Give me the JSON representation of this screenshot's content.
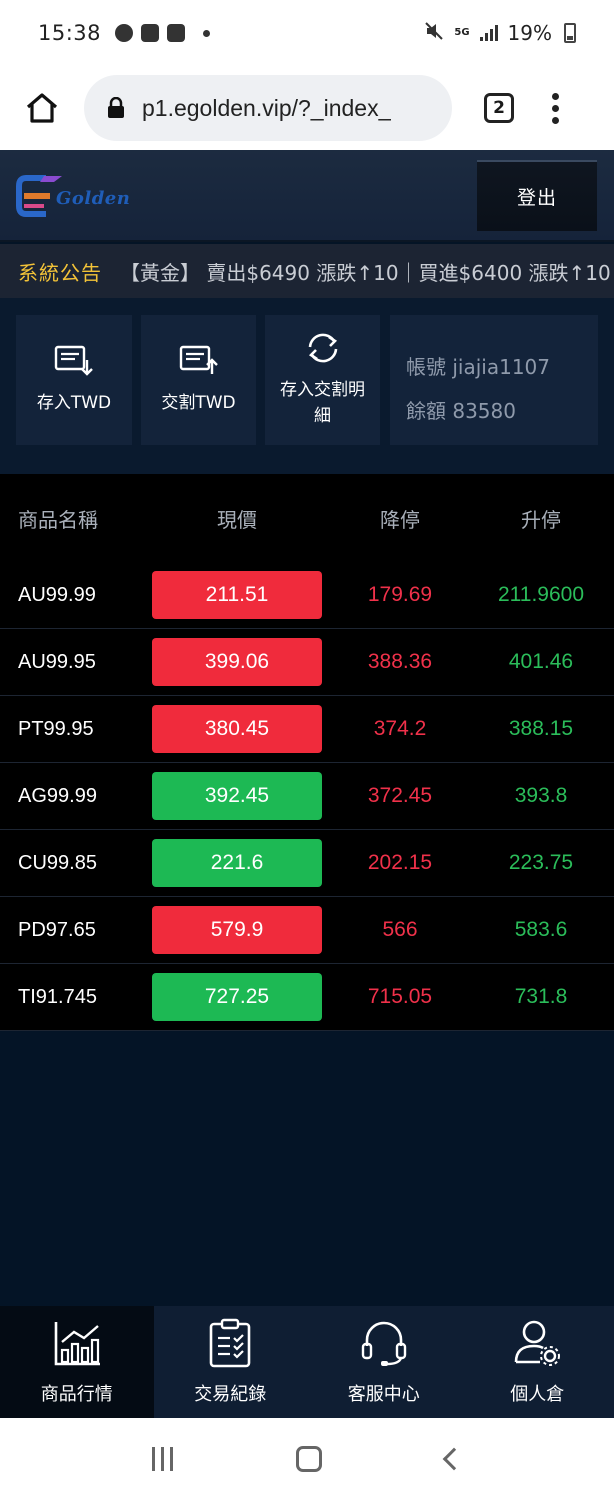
{
  "status_bar": {
    "time": "15:38",
    "left_icons": [
      "line-icon",
      "gallery-icon",
      "bus-icon",
      "dot-icon"
    ],
    "network": "5G",
    "battery": "19%",
    "right_icons": [
      "mute-icon",
      "signal-icon",
      "battery-icon"
    ]
  },
  "browser": {
    "url": "p1.egolden.vip/?_index_",
    "tab_count": "2"
  },
  "header": {
    "logo_text": "Golden",
    "logout_label": "登出"
  },
  "notice": {
    "label": "系統公告",
    "text": "【黃金】 賣出$6490 漲跌↑10｜買進$6400 漲跌↑10"
  },
  "actions": [
    {
      "label": "存入TWD",
      "icon": "deposit-icon"
    },
    {
      "label": "交割TWD",
      "icon": "settlement-icon"
    },
    {
      "label": "存入交割明細",
      "icon": "refresh-icon"
    }
  ],
  "account": {
    "account_line": "帳號 jiajia1107",
    "balance_line": "餘額 83580"
  },
  "table": {
    "headers": {
      "name": "商品名稱",
      "price": "現價",
      "limit_down": "降停",
      "limit_up": "升停"
    },
    "rows": [
      {
        "name": "AU99.99",
        "price": "211.51",
        "limit_down": "179.69",
        "limit_up": "211.9600",
        "trend": "down",
        "color": "#f02b3c"
      },
      {
        "name": "AU99.95",
        "price": "399.06",
        "limit_down": "388.36",
        "limit_up": "401.46",
        "trend": "down",
        "color": "#f02b3c"
      },
      {
        "name": "PT99.95",
        "price": "380.45",
        "limit_down": "374.2",
        "limit_up": "388.15",
        "trend": "down",
        "color": "#f02b3c"
      },
      {
        "name": "AG99.99",
        "price": "392.45",
        "limit_down": "372.45",
        "limit_up": "393.8",
        "trend": "up",
        "color": "#1db954"
      },
      {
        "name": "CU99.85",
        "price": "221.6",
        "limit_down": "202.15",
        "limit_up": "223.75",
        "trend": "up",
        "color": "#1db954"
      },
      {
        "name": "PD97.65",
        "price": "579.9",
        "limit_down": "566",
        "limit_up": "583.6",
        "trend": "down",
        "color": "#f02b3c"
      },
      {
        "name": "TI91.745",
        "price": "727.25",
        "limit_down": "715.05",
        "limit_up": "731.8",
        "trend": "up",
        "color": "#1db954"
      }
    ]
  },
  "bottom_nav": [
    {
      "label": "商品行情",
      "icon": "chart-icon",
      "active": true
    },
    {
      "label": "交易紀錄",
      "icon": "clipboard-icon",
      "active": false
    },
    {
      "label": "客服中心",
      "icon": "headset-icon",
      "active": false
    },
    {
      "label": "個人倉",
      "icon": "user-settings-icon",
      "active": false
    }
  ],
  "colors": {
    "app_bg": "#041426",
    "notice_label": "#f3c338",
    "price_up": "#1db954",
    "price_down": "#f02b3c"
  }
}
